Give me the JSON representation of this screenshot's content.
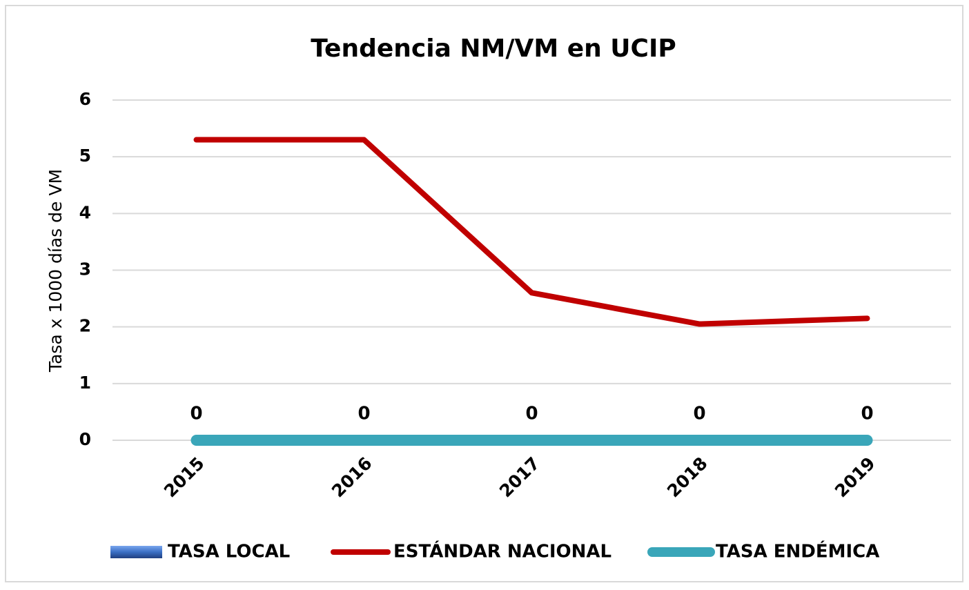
{
  "chart_data": {
    "type": "line",
    "title": "Tendencia NM/VM en UCIP",
    "y_label": "Tasa x 1000 días de VM",
    "categories": [
      "2015",
      "2016",
      "2017",
      "2018",
      "2019"
    ],
    "series": [
      {
        "name": "TASA LOCAL",
        "type": "bar",
        "color": "#3a6fc4",
        "values": [
          0,
          0,
          0,
          0,
          0
        ]
      },
      {
        "name": "ESTÁNDAR NACIONAL",
        "type": "line",
        "color": "#c00000",
        "values": [
          5.3,
          5.3,
          2.6,
          2.05,
          2.15
        ]
      },
      {
        "name": "TASA ENDÉMICA",
        "type": "line",
        "color": "#3aa6b9",
        "values": [
          0,
          0,
          0,
          0,
          0
        ]
      }
    ],
    "ylim": [
      0,
      6
    ],
    "yticks": [
      0,
      1,
      2,
      3,
      4,
      5,
      6
    ],
    "grid": true,
    "legend": "bottom"
  }
}
